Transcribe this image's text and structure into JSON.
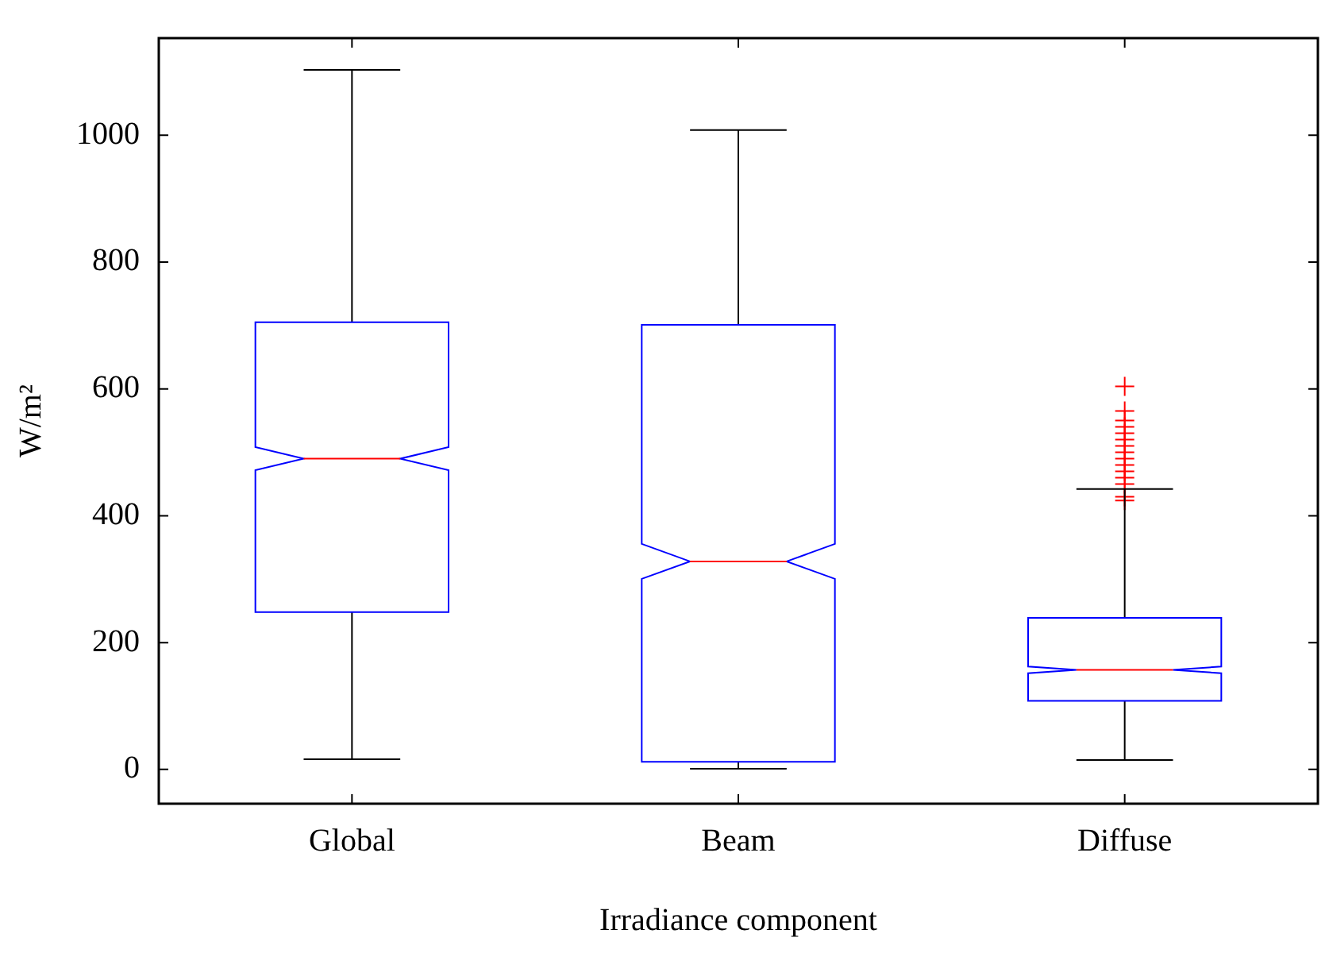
{
  "chart_data": {
    "type": "box",
    "xlabel": "Irradiance component",
    "ylabel": "W/m²",
    "categories": [
      "Global",
      "Beam",
      "Diffuse"
    ],
    "ylim": [
      -54,
      1153
    ],
    "yticks": [
      0,
      200,
      400,
      600,
      800,
      1000
    ],
    "grid": false,
    "legend": false,
    "boxes": [
      {
        "low": 16,
        "q1": 248,
        "median": 490,
        "q3": 705,
        "high": 1103
      },
      {
        "low": 1,
        "q1": 12,
        "median": 328,
        "q3": 701,
        "high": 1008
      },
      {
        "low": 15,
        "q1": 108,
        "median": 157,
        "q3": 239,
        "high": 442,
        "outliers": [
          424,
          430,
          450,
          460,
          470,
          480,
          490,
          500,
          510,
          520,
          530,
          540,
          550,
          565,
          604
        ]
      }
    ]
  }
}
